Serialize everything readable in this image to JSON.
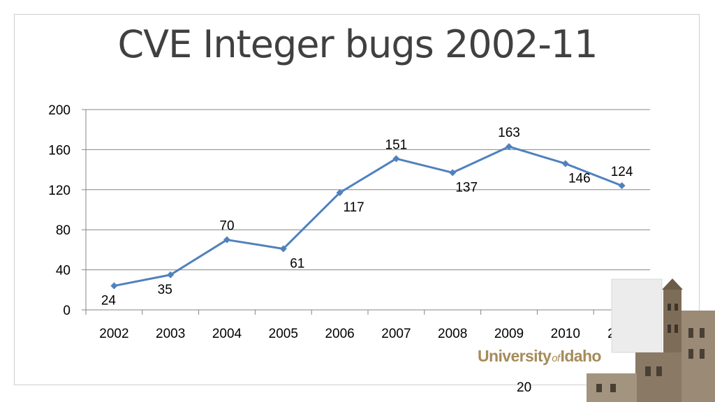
{
  "slide": {
    "title": "CVE Integer bugs 2002-11",
    "page_number": "20"
  },
  "logo": {
    "part1": "University",
    "part2": "of",
    "part3": "Idaho"
  },
  "chart_data": {
    "type": "line",
    "categories": [
      "2002",
      "2003",
      "2004",
      "2005",
      "2006",
      "2007",
      "2008",
      "2009",
      "2010",
      "2011"
    ],
    "values": [
      24,
      35,
      70,
      61,
      117,
      151,
      137,
      163,
      146,
      124
    ],
    "data_labels": [
      "24",
      "35",
      "70",
      "61",
      "117",
      "151",
      "137",
      "163",
      "146",
      "124"
    ],
    "label_positions": [
      "below",
      "below",
      "above",
      "below",
      "below",
      "above",
      "below",
      "above",
      "below",
      "above"
    ],
    "ylim": [
      0,
      200
    ],
    "yticks": [
      0,
      40,
      80,
      120,
      160,
      200
    ],
    "ytick_labels": [
      "0",
      "40",
      "80",
      "120",
      "160",
      "200"
    ],
    "grid": true,
    "line_color": "#4f81bd",
    "grid_color": "#868686",
    "xlabel": "",
    "ylabel": ""
  }
}
